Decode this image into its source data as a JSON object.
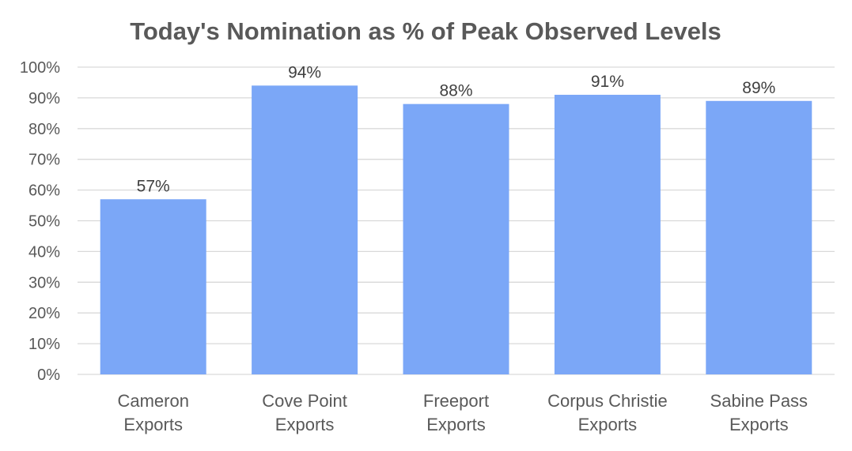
{
  "chart_data": {
    "type": "bar",
    "title": "Today's Nomination as % of Peak Observed Levels",
    "categories": [
      [
        "Cameron",
        "Exports"
      ],
      [
        "Cove Point",
        "Exports"
      ],
      [
        "Freeport",
        "Exports"
      ],
      [
        "Corpus Christie",
        "Exports"
      ],
      [
        "Sabine Pass",
        "Exports"
      ]
    ],
    "values": [
      57,
      94,
      88,
      91,
      89
    ],
    "data_labels": [
      "57%",
      "94%",
      "88%",
      "91%",
      "89%"
    ],
    "ylim": [
      0,
      100
    ],
    "y_ticks": [
      "0%",
      "10%",
      "20%",
      "30%",
      "40%",
      "50%",
      "60%",
      "70%",
      "80%",
      "90%",
      "100%"
    ],
    "grid": true,
    "legend": "none",
    "colors": {
      "bar": "#7BA7F7",
      "grid": "#D9D9D9",
      "text": "#595959"
    }
  }
}
